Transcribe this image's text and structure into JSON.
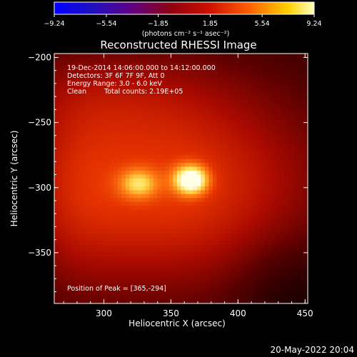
{
  "chart_data": {
    "type": "heatmap",
    "title": "Reconstructed RHESSI Image",
    "xlabel": "Heliocentric X (arcsec)",
    "ylabel": "Heliocentric Y (arcsec)",
    "xlim": [
      263,
      452
    ],
    "ylim": [
      -389,
      -197
    ],
    "x_ticks": [
      "300",
      "350",
      "400",
      "450"
    ],
    "y_ticks": [
      "-200",
      "-250",
      "-300",
      "-350"
    ],
    "colorbar": {
      "label": "(photons cm⁻² s⁻¹ asec⁻²)",
      "ticks": [
        "-9.24",
        "-5.54",
        "-1.85",
        "1.85",
        "5.54",
        "9.24"
      ],
      "range": [
        -9.24,
        9.24
      ]
    },
    "annotations": {
      "time": "19-Dec-2014 14:06:00.000 to 14:12:00.000",
      "detectors": "Detectors: 3F 6F 7F 9F, Att 0",
      "energy": "Energy Range: 3.0 - 6.0 keV",
      "method": "Clean",
      "counts": "Total counts: 2.19E+05",
      "peak": "Position of Peak = [365,-294]"
    },
    "peak": {
      "x": 365,
      "y": -294
    },
    "secondary_source": {
      "x": 326,
      "y": -297
    },
    "footer_date": "20-May-2022 20:04"
  },
  "colors": {
    "background": "#000000",
    "colormap": [
      "#0000ff",
      "#3a1070",
      "#7a0010",
      "#c00000",
      "#ff3000",
      "#ff9a00",
      "#ffff90",
      "#ffffff"
    ]
  }
}
